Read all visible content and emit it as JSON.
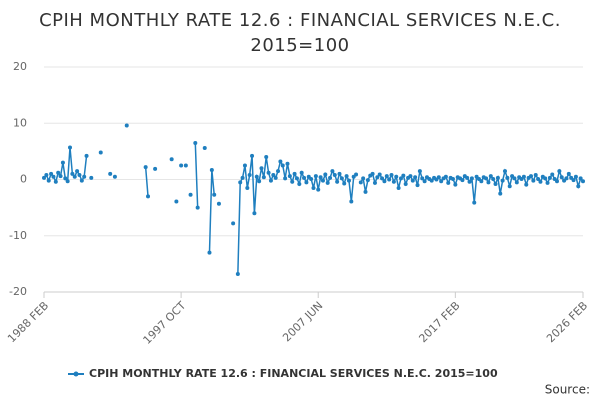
{
  "chart_data": {
    "type": "line",
    "title": "CPIH MONTHLY RATE 12.6 : FINANCIAL SERVICES N.E.C. 2015=100",
    "source": "Source:",
    "ylim": [
      -20,
      20
    ],
    "yticks": [
      -20,
      -10,
      0,
      10,
      20
    ],
    "grid": true,
    "legend": "bottom",
    "categories": [
      "1988 FEB",
      null,
      null,
      null,
      null,
      null,
      null,
      null,
      null,
      null,
      null,
      null,
      null,
      null,
      null,
      null,
      null,
      null,
      null,
      null,
      null,
      null,
      null,
      null,
      null,
      null,
      null,
      null,
      null,
      null,
      null,
      null,
      null,
      null,
      null,
      null,
      null,
      null,
      null,
      null,
      null,
      null,
      null,
      null,
      null,
      null,
      null,
      null,
      null,
      null,
      null,
      null,
      null,
      null,
      null,
      null,
      null,
      null,
      "1997 OCT",
      null,
      null,
      null,
      null,
      null,
      null,
      null,
      null,
      null,
      null,
      null,
      null,
      null,
      null,
      null,
      null,
      null,
      null,
      null,
      null,
      null,
      null,
      null,
      null,
      null,
      null,
      null,
      null,
      null,
      null,
      null,
      null,
      null,
      null,
      null,
      null,
      null,
      null,
      null,
      null,
      null,
      null,
      null,
      null,
      null,
      null,
      null,
      null,
      null,
      null,
      null,
      null,
      null,
      null,
      null,
      null,
      null,
      "2007 JUN",
      null,
      null,
      null,
      null,
      null,
      null,
      null,
      null,
      null,
      null,
      null,
      null,
      null,
      null,
      null,
      null,
      null,
      null,
      null,
      null,
      null,
      null,
      null,
      null,
      null,
      null,
      null,
      null,
      null,
      null,
      null,
      null,
      null,
      null,
      null,
      null,
      null,
      null,
      null,
      null,
      null,
      null,
      null,
      null,
      null,
      null,
      null,
      null,
      null,
      null,
      null,
      null,
      null,
      null,
      null,
      null,
      null,
      "2017 FEB",
      null,
      null,
      null,
      null,
      null,
      null,
      null,
      null,
      null,
      null,
      null,
      null,
      null,
      null,
      null,
      null,
      null,
      null,
      null,
      null,
      null,
      null,
      null,
      null,
      null,
      null,
      null,
      null,
      null,
      null,
      null,
      null,
      null,
      null,
      null,
      null,
      null,
      null,
      null,
      null,
      null,
      null,
      null,
      null,
      null,
      null,
      null,
      null,
      null,
      null,
      null,
      null,
      null,
      "2026 FEB"
    ],
    "series": [
      {
        "name": "CPIH MONTHLY RATE 12.6 : FINANCIAL SERVICES N.E.C. 2015=100",
        "color": "#1f7fbf",
        "values": [
          0.3,
          0.8,
          -0.2,
          1.0,
          0.5,
          -0.4,
          1.2,
          0.6,
          3.0,
          0.2,
          -0.3,
          5.7,
          1.0,
          0.5,
          1.5,
          0.8,
          -0.2,
          0.5,
          4.2,
          null,
          0.3,
          null,
          null,
          null,
          4.8,
          null,
          null,
          null,
          1.0,
          null,
          0.5,
          null,
          null,
          null,
          null,
          9.6,
          null,
          null,
          null,
          null,
          null,
          null,
          null,
          2.2,
          -3.0,
          null,
          null,
          1.9,
          null,
          null,
          null,
          null,
          null,
          null,
          3.6,
          null,
          -3.9,
          null,
          2.5,
          null,
          2.5,
          null,
          -2.7,
          null,
          6.5,
          -5.0,
          null,
          null,
          5.6,
          null,
          -13.0,
          1.7,
          -2.7,
          null,
          -4.3,
          null,
          null,
          null,
          null,
          null,
          -7.8,
          null,
          -16.8,
          -0.5,
          0.3,
          2.5,
          -1.5,
          0.8,
          4.2,
          -6.0,
          0.5,
          -0.3,
          2.0,
          0.4,
          4.0,
          1.2,
          -0.2,
          0.8,
          0.3,
          1.5,
          3.2,
          2.5,
          0.2,
          2.8,
          0.6,
          -0.4,
          1.0,
          0.2,
          -0.8,
          1.2,
          0.3,
          -0.5,
          0.5,
          0.1,
          -1.5,
          0.6,
          -1.8,
          0.4,
          -0.2,
          0.9,
          -0.6,
          0.3,
          1.5,
          0.8,
          -0.4,
          1.0,
          0.2,
          -0.7,
          0.6,
          -0.2,
          -3.9,
          0.5,
          0.9,
          null,
          -0.5,
          0.2,
          -2.2,
          -0.1,
          0.7,
          1.0,
          -0.6,
          0.4,
          0.9,
          0.2,
          -0.3,
          0.6,
          0.0,
          0.8,
          -0.4,
          0.5,
          -1.5,
          0.2,
          0.7,
          -0.8,
          0.3,
          0.6,
          -0.2,
          0.4,
          -1.0,
          1.5,
          0.2,
          -0.3,
          0.4,
          0.1,
          -0.2,
          0.3,
          0.0,
          0.4,
          -0.3,
          0.2,
          0.5,
          -0.6,
          0.3,
          0.1,
          -0.9,
          0.4,
          0.2,
          -0.1,
          0.6,
          0.3,
          -0.4,
          0.2,
          -4.1,
          0.5,
          0.1,
          -0.3,
          0.4,
          0.2,
          -0.5,
          0.6,
          0.1,
          -0.8,
          0.3,
          -2.5,
          -0.2,
          1.5,
          0.3,
          -1.2,
          0.6,
          0.2,
          -0.5,
          0.4,
          0.1,
          0.5,
          -0.9,
          0.3,
          0.6,
          -0.2,
          0.8,
          0.1,
          -0.4,
          0.5,
          0.2,
          -0.6,
          0.3,
          0.9,
          0.1,
          -0.3,
          1.5,
          0.4,
          -0.2,
          0.2,
          1.0,
          0.3,
          -0.1,
          0.5,
          -1.2,
          0.2,
          -0.3
        ]
      }
    ]
  }
}
